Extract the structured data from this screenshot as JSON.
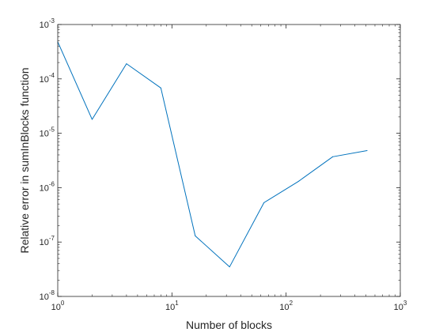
{
  "chart_data": {
    "type": "line",
    "title": "",
    "xlabel": "Number of blocks",
    "ylabel": "Relative error in sumInBlocks function",
    "xscale": "log",
    "yscale": "log",
    "xlim": [
      1,
      1000
    ],
    "ylim": [
      1e-08,
      0.001
    ],
    "grid": false,
    "box": true,
    "x_ticks": [
      {
        "value": 1,
        "base": "10",
        "exp": "0"
      },
      {
        "value": 10,
        "base": "10",
        "exp": "1"
      },
      {
        "value": 100,
        "base": "10",
        "exp": "2"
      },
      {
        "value": 1000,
        "base": "10",
        "exp": "3"
      }
    ],
    "y_ticks": [
      {
        "value": 1e-08,
        "base": "10",
        "exp": "-8"
      },
      {
        "value": 1e-07,
        "base": "10",
        "exp": "-7"
      },
      {
        "value": 1e-06,
        "base": "10",
        "exp": "-6"
      },
      {
        "value": 1e-05,
        "base": "10",
        "exp": "-5"
      },
      {
        "value": 0.0001,
        "base": "10",
        "exp": "-4"
      },
      {
        "value": 0.001,
        "base": "10",
        "exp": "-3"
      }
    ],
    "series": [
      {
        "color": "#0072bd",
        "x": [
          1,
          2,
          4,
          8,
          16,
          32,
          64,
          128,
          256,
          512
        ],
        "y": [
          0.00048,
          1.8e-05,
          0.00019,
          6.8e-05,
          1.3e-07,
          3.5e-08,
          5.3e-07,
          1.3e-06,
          3.7e-06,
          4.8e-06
        ]
      }
    ]
  }
}
